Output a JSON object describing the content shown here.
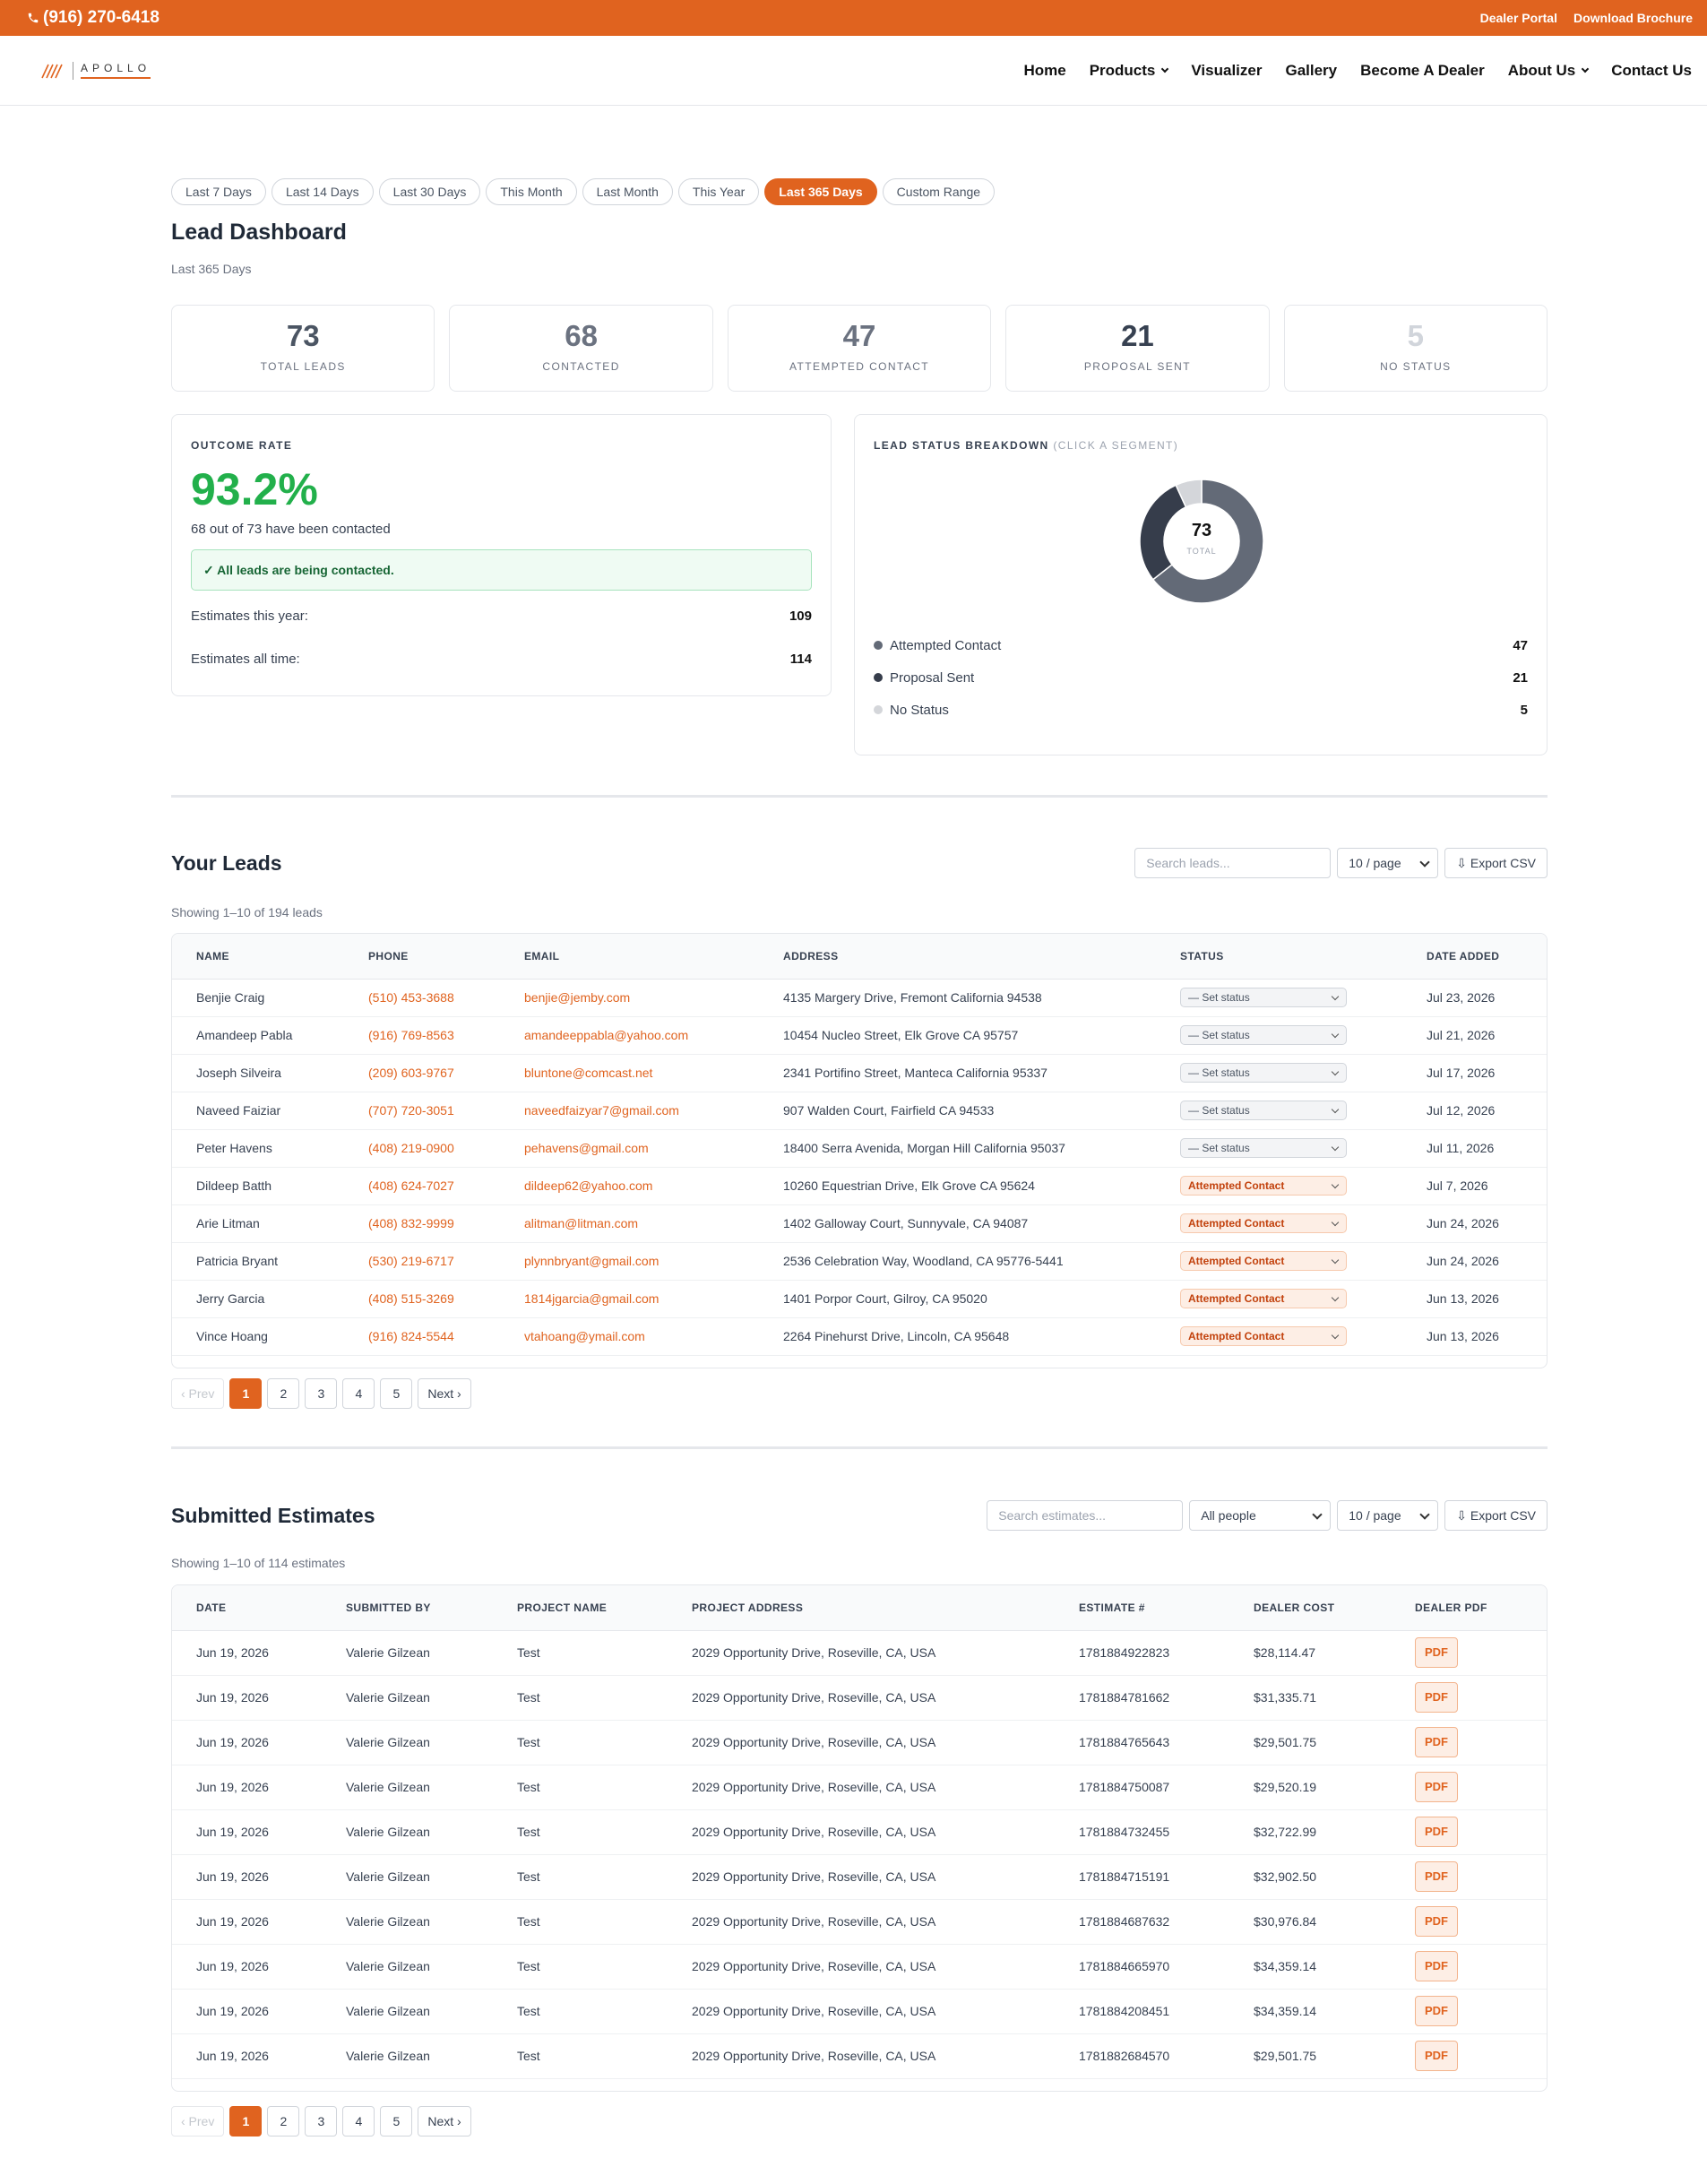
{
  "topbar": {
    "phone": "(916) 270-6418",
    "links": [
      "Dealer Portal",
      "Download Brochure"
    ]
  },
  "nav": {
    "logo": "APOLLO",
    "links": [
      {
        "label": "Home"
      },
      {
        "label": "Products",
        "dropdown": true
      },
      {
        "label": "Visualizer"
      },
      {
        "label": "Gallery"
      },
      {
        "label": "Become A Dealer"
      },
      {
        "label": "About Us",
        "dropdown": true
      },
      {
        "label": "Contact Us"
      }
    ]
  },
  "filters": {
    "options": [
      "Last 7 Days",
      "Last 14 Days",
      "Last 30 Days",
      "This Month",
      "Last Month",
      "This Year",
      "Last 365 Days",
      "Custom Range"
    ],
    "active": 6
  },
  "dashboard": {
    "title": "Lead Dashboard",
    "period": "Last 365 Days",
    "stats": [
      {
        "value": 73,
        "label": "TOTAL LEADS",
        "color": "#4b5563"
      },
      {
        "value": 68,
        "label": "CONTACTED",
        "color": "#6b7280"
      },
      {
        "value": 47,
        "label": "ATTEMPTED CONTACT",
        "color": "#6b7280"
      },
      {
        "value": 21,
        "label": "PROPOSAL SENT",
        "color": "#374151"
      },
      {
        "value": 5,
        "label": "NO STATUS",
        "color": "#d1d5db"
      }
    ]
  },
  "outcome": {
    "label": "OUTCOME RATE",
    "rate": "93.2%",
    "summary": "68 out of 73 have been contacted",
    "notice": "✓ All leads are being contacted.",
    "rows": [
      {
        "label": "Estimates this year:",
        "value": 109
      },
      {
        "label": "Estimates all time:",
        "value": 114
      }
    ]
  },
  "breakdown": {
    "title": "LEAD STATUS BREAKDOWN",
    "hint": "(CLICK A SEGMENT)",
    "total": 73,
    "total_label": "TOTAL",
    "segments": [
      {
        "name": "Attempted Contact",
        "value": 47,
        "color": "#636a77"
      },
      {
        "name": "Proposal Sent",
        "value": 21,
        "color": "#363d4b"
      },
      {
        "name": "No Status",
        "value": 5,
        "color": "#d4d6da"
      }
    ]
  },
  "leads": {
    "title": "Your Leads",
    "search_placeholder": "Search leads...",
    "page_size": "10 / page",
    "export": "⇩ Export CSV",
    "showing": "Showing 1–10 of 194 leads",
    "columns": [
      "NAME",
      "PHONE",
      "EMAIL",
      "ADDRESS",
      "STATUS",
      "DATE ADDED"
    ],
    "rows": [
      [
        "Benjie Craig",
        "(510) 453-3688",
        "benjie@jemby.com",
        "4135 Margery Drive, Fremont California 94538",
        "— Set status",
        "Jul 23, 2026"
      ],
      [
        "Amandeep Pabla",
        "(916) 769-8563",
        "amandeeppabla@yahoo.com",
        "10454 Nucleo Street, Elk Grove CA 95757",
        "— Set status",
        "Jul 21, 2026"
      ],
      [
        "Joseph Silveira",
        "(209) 603-9767",
        "bluntone@comcast.net",
        "2341 Portifino Street, Manteca California 95337",
        "— Set status",
        "Jul 17, 2026"
      ],
      [
        "Naveed Faiziar",
        "(707) 720-3051",
        "naveedfaizyar7@gmail.com",
        "907 Walden Court, Fairfield CA 94533",
        "— Set status",
        "Jul 12, 2026"
      ],
      [
        "Peter Havens",
        "(408) 219-0900",
        "pehavens@gmail.com",
        "18400 Serra Avenida, Morgan Hill California 95037",
        "— Set status",
        "Jul 11, 2026"
      ],
      [
        "Dildeep Batth",
        "(408) 624-7027",
        "dildeep62@yahoo.com",
        "10260 Equestrian Drive, Elk Grove CA 95624",
        "Attempted Contact",
        "Jul 7, 2026"
      ],
      [
        "Arie Litman",
        "(408) 832-9999",
        "alitman@litman.com",
        "1402 Galloway Court, Sunnyvale, CA 94087",
        "Attempted Contact",
        "Jun 24, 2026"
      ],
      [
        "Patricia Bryant",
        "(530) 219-6717",
        "plynnbryant@gmail.com",
        "2536 Celebration Way, Woodland, CA 95776-5441",
        "Attempted Contact",
        "Jun 24, 2026"
      ],
      [
        "Jerry Garcia",
        "(408) 515-3269",
        "1814jgarcia@gmail.com",
        "1401 Porpor Court, Gilroy, CA 95020",
        "Attempted Contact",
        "Jun 13, 2026"
      ],
      [
        "Vince Hoang",
        "(916) 824-5544",
        "vtahoang@ymail.com",
        "2264 Pinehurst Drive, Lincoln, CA 95648",
        "Attempted Contact",
        "Jun 13, 2026"
      ]
    ],
    "pagination": {
      "prev": "‹ Prev",
      "pages": [
        1,
        2,
        3,
        4,
        5
      ],
      "next": "Next ›",
      "active": 0
    }
  },
  "estimates": {
    "title": "Submitted Estimates",
    "search_placeholder": "Search estimates...",
    "people_filter": "All people",
    "page_size": "10 / page",
    "export": "⇩ Export CSV",
    "showing": "Showing 1–10 of 114 estimates",
    "columns": [
      "DATE",
      "SUBMITTED BY",
      "PROJECT NAME",
      "PROJECT ADDRESS",
      "ESTIMATE #",
      "DEALER COST",
      "DEALER PDF"
    ],
    "rows": [
      [
        "Jun 19, 2026",
        "Valerie Gilzean",
        "Test",
        "2029 Opportunity Drive, Roseville, CA, USA",
        "1781884922823",
        "$28,114.47",
        "PDF"
      ],
      [
        "Jun 19, 2026",
        "Valerie Gilzean",
        "Test",
        "2029 Opportunity Drive, Roseville, CA, USA",
        "1781884781662",
        "$31,335.71",
        "PDF"
      ],
      [
        "Jun 19, 2026",
        "Valerie Gilzean",
        "Test",
        "2029 Opportunity Drive, Roseville, CA, USA",
        "1781884765643",
        "$29,501.75",
        "PDF"
      ],
      [
        "Jun 19, 2026",
        "Valerie Gilzean",
        "Test",
        "2029 Opportunity Drive, Roseville, CA, USA",
        "1781884750087",
        "$29,520.19",
        "PDF"
      ],
      [
        "Jun 19, 2026",
        "Valerie Gilzean",
        "Test",
        "2029 Opportunity Drive, Roseville, CA, USA",
        "1781884732455",
        "$32,722.99",
        "PDF"
      ],
      [
        "Jun 19, 2026",
        "Valerie Gilzean",
        "Test",
        "2029 Opportunity Drive, Roseville, CA, USA",
        "1781884715191",
        "$32,902.50",
        "PDF"
      ],
      [
        "Jun 19, 2026",
        "Valerie Gilzean",
        "Test",
        "2029 Opportunity Drive, Roseville, CA, USA",
        "1781884687632",
        "$30,976.84",
        "PDF"
      ],
      [
        "Jun 19, 2026",
        "Valerie Gilzean",
        "Test",
        "2029 Opportunity Drive, Roseville, CA, USA",
        "1781884665970",
        "$34,359.14",
        "PDF"
      ],
      [
        "Jun 19, 2026",
        "Valerie Gilzean",
        "Test",
        "2029 Opportunity Drive, Roseville, CA, USA",
        "1781884208451",
        "$34,359.14",
        "PDF"
      ],
      [
        "Jun 19, 2026",
        "Valerie Gilzean",
        "Test",
        "2029 Opportunity Drive, Roseville, CA, USA",
        "1781882684570",
        "$29,501.75",
        "PDF"
      ]
    ],
    "pagination": {
      "prev": "‹ Prev",
      "pages": [
        1,
        2,
        3,
        4,
        5
      ],
      "next": "Next ›",
      "active": 0
    }
  }
}
